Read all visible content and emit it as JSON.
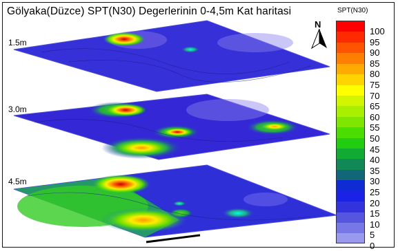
{
  "title": "Gölyaka(Düzce) SPT(N30) Degerlerinin 0-4,5m Kat haritasi",
  "north_label": "N",
  "layers": [
    {
      "label": "1.5m"
    },
    {
      "label": "3.0m"
    },
    {
      "label": "4.5m"
    }
  ],
  "legend": {
    "title": "SPT(N30)",
    "ticks": [
      "100",
      "95",
      "90",
      "85",
      "80",
      "75",
      "70",
      "65",
      "60",
      "55",
      "50",
      "45",
      "40",
      "35",
      "30",
      "25",
      "20",
      "15",
      "10",
      "5",
      "0"
    ],
    "colors": [
      "#ff0000",
      "#ff2a00",
      "#ff5500",
      "#ff7f00",
      "#ffaa00",
      "#ffd400",
      "#ffff00",
      "#d4f500",
      "#aaee00",
      "#7fe600",
      "#4cdd00",
      "#22cc11",
      "#11aa33",
      "#118855",
      "#116677",
      "#0e2bd4",
      "#1a22e6",
      "#3333dd",
      "#5555dd",
      "#7777e6",
      "#9999ee"
    ]
  }
}
